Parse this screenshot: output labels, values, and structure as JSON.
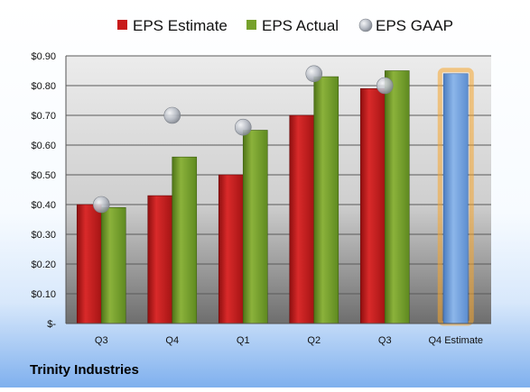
{
  "company_name": "Trinity Industries",
  "colors": {
    "estimate": "#c81a1a",
    "actual": "#76a12c",
    "gaap": "#a9aeb7",
    "forecast": "#6f9fdb",
    "forecast_glow": "#f6a52e"
  },
  "chart_data": {
    "type": "bar",
    "title": "",
    "xlabel": "",
    "ylabel": "",
    "categories": [
      "Q3",
      "Q4",
      "Q1",
      "Q2",
      "Q3",
      "Q4 Estimate"
    ],
    "series": [
      {
        "name": "EPS Estimate",
        "kind": "bar",
        "values": [
          0.4,
          0.43,
          0.5,
          0.7,
          0.79,
          null
        ]
      },
      {
        "name": "EPS Actual",
        "kind": "bar",
        "values": [
          0.39,
          0.56,
          0.65,
          0.83,
          0.85,
          null
        ]
      },
      {
        "name": "EPS GAAP",
        "kind": "marker",
        "values": [
          0.4,
          0.7,
          0.66,
          0.84,
          0.8,
          null
        ]
      },
      {
        "kind": "bar-forecast",
        "values": [
          null,
          null,
          null,
          null,
          null,
          0.84
        ]
      }
    ],
    "ylim": [
      0,
      0.9
    ],
    "yticks": [
      0,
      0.1,
      0.2,
      0.3,
      0.4,
      0.5,
      0.6,
      0.7,
      0.8,
      0.9
    ],
    "ytick_labels": [
      "$-",
      "$0.10",
      "$0.20",
      "$0.30",
      "$0.40",
      "$0.50",
      "$0.60",
      "$0.70",
      "$0.80",
      "$0.90"
    ],
    "grid": true,
    "legend_position": "top"
  }
}
